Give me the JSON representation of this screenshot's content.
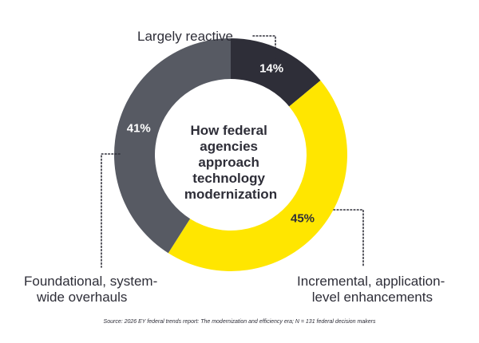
{
  "chart_data": {
    "type": "pie",
    "variant": "donut",
    "center_title_lines": [
      "How federal",
      "agencies",
      "approach",
      "technology",
      "modernization"
    ],
    "slices": [
      {
        "category_lines": [
          "Largely reactive"
        ],
        "value": 14,
        "label": "14%",
        "color": "#2e2e38",
        "label_color": "#ffffff"
      },
      {
        "category_lines": [
          "Incremental, application-",
          "level enhancements"
        ],
        "value": 45,
        "label": "45%",
        "color": "#ffe600",
        "label_color": "#2e2e38"
      },
      {
        "category_lines": [
          "Foundational, system-",
          "wide overhauls"
        ],
        "value": 41,
        "label": "41%",
        "color": "#575a63",
        "label_color": "#ffffff"
      }
    ],
    "start_angle_deg": 0,
    "direction": "clockwise",
    "source": "Source: 2026 EY federal trends report: The modernization and efficiency era; N = 131 federal decision makers"
  }
}
